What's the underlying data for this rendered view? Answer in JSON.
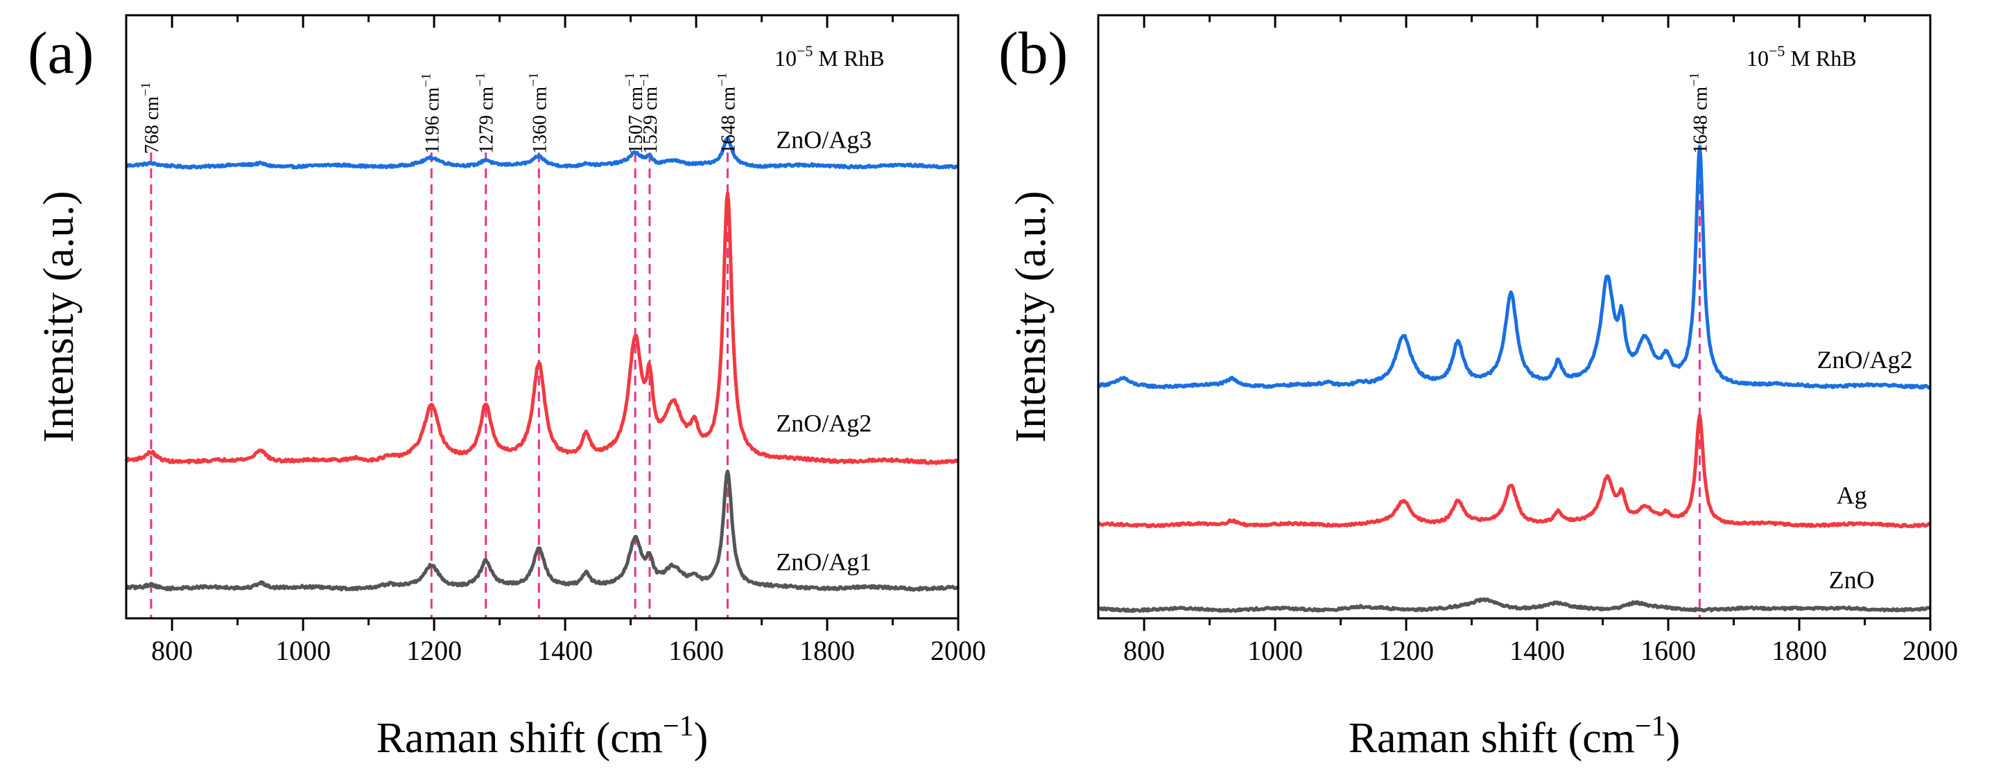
{
  "colors": {
    "blue": "#1a6fe0",
    "red": "#f03a40",
    "gray": "#555555",
    "peak": "#e8338a"
  },
  "chart_data": [
    {
      "type": "line",
      "panel": "(a)",
      "note_prefix": "10",
      "note_exponent": "−5",
      "note_suffix": " M RhB",
      "xlabel": "Raman shift (cm",
      "xlabel_exp": "−1",
      "xlabel_close": ")",
      "ylabel": "Intensity (a.u.)",
      "xlim": [
        730,
        2000
      ],
      "ylim": [
        0,
        100
      ],
      "xticks": [
        800,
        1000,
        1200,
        1400,
        1600,
        1800,
        2000
      ],
      "tick_labels": [
        "800",
        "1000",
        "1200",
        "1400",
        "1600",
        "1800",
        "2000"
      ],
      "peak_lines": [
        768,
        1196,
        1279,
        1360,
        1507,
        1529,
        1648
      ],
      "peak_labels": [
        "768 cm",
        "1196 cm",
        "1279 cm",
        "1360 cm",
        "1507 cm",
        "1529 cm",
        "1648 cm"
      ],
      "peak_label_exp": "−1",
      "series": [
        {
          "name": "ZnO/Ag3",
          "color": "#1a6fe0",
          "baseline": 75,
          "noise": 0.18,
          "label_x": 1795,
          "label_y": 78,
          "peaks": [
            [
              768,
              0.3,
              10
            ],
            [
              935,
              0.4,
              10
            ],
            [
              1196,
              1.2,
              15
            ],
            [
              1279,
              1.1,
              10
            ],
            [
              1360,
              1.5,
              10
            ],
            [
              1432,
              0.5,
              7
            ],
            [
              1507,
              2.0,
              12
            ],
            [
              1529,
              1.2,
              6
            ],
            [
              1565,
              1.0,
              15
            ],
            [
              1648,
              4.5,
              8
            ]
          ]
        },
        {
          "name": "ZnO/Ag2",
          "color": "#f03a40",
          "baseline": 26,
          "noise": 0.22,
          "label_x": 1795,
          "label_y": 31,
          "peaks": [
            [
              768,
              1.5,
              10
            ],
            [
              935,
              2.0,
              10
            ],
            [
              1080,
              0.5,
              10
            ],
            [
              1130,
              0.5,
              10
            ],
            [
              1196,
              9.0,
              14
            ],
            [
              1279,
              9.0,
              10
            ],
            [
              1360,
              16.0,
              11
            ],
            [
              1432,
              3.8,
              7
            ],
            [
              1507,
              19.5,
              12
            ],
            [
              1529,
              10.0,
              6
            ],
            [
              1565,
              8.5,
              16
            ],
            [
              1597,
              4.0,
              8
            ],
            [
              1648,
              44.0,
              8
            ]
          ]
        },
        {
          "name": "ZnO/Ag1",
          "color": "#555555",
          "baseline": 5,
          "noise": 0.22,
          "label_x": 1795,
          "label_y": 8,
          "peaks": [
            [
              768,
              0.7,
              10
            ],
            [
              935,
              1.0,
              10
            ],
            [
              1130,
              0.4,
              10
            ],
            [
              1196,
              3.8,
              14
            ],
            [
              1279,
              4.2,
              10
            ],
            [
              1360,
              6.5,
              11
            ],
            [
              1432,
              2.0,
              7
            ],
            [
              1507,
              8.0,
              12
            ],
            [
              1529,
              3.5,
              6
            ],
            [
              1565,
              3.0,
              16
            ],
            [
              1597,
              1.0,
              8
            ],
            [
              1648,
              19.5,
              8
            ]
          ]
        }
      ]
    },
    {
      "type": "line",
      "panel": "(b)",
      "note_prefix": "10",
      "note_exponent": "−5",
      "note_suffix": " M RhB",
      "xlabel": "Raman shift (cm",
      "xlabel_exp": "−1",
      "xlabel_close": ")",
      "ylabel": "Intensity (a.u.)",
      "xlim": [
        730,
        2000
      ],
      "ylim": [
        0,
        100
      ],
      "xticks": [
        800,
        1000,
        1200,
        1400,
        1600,
        1800,
        2000
      ],
      "tick_labels": [
        "800",
        "1000",
        "1200",
        "1400",
        "1600",
        "1800",
        "2000"
      ],
      "peak_lines": [
        1648
      ],
      "peak_labels": [
        "1648 cm"
      ],
      "peak_label_exp": "−1",
      "series": [
        {
          "name": "ZnO/Ag2",
          "color": "#1a6fe0",
          "baseline": 38.5,
          "noise": 0.2,
          "label_x": 1900,
          "label_y": 41.5,
          "peaks": [
            [
              768,
              1.2,
              10
            ],
            [
              935,
              1.2,
              10
            ],
            [
              1080,
              0.4,
              10
            ],
            [
              1130,
              0.5,
              10
            ],
            [
              1196,
              8.0,
              14
            ],
            [
              1279,
              7.0,
              10
            ],
            [
              1360,
              15.0,
              11
            ],
            [
              1432,
              3.5,
              7
            ],
            [
              1507,
              17.0,
              12
            ],
            [
              1529,
              8.0,
              6
            ],
            [
              1565,
              7.0,
              15
            ],
            [
              1597,
              3.5,
              8
            ],
            [
              1648,
              39.0,
              7
            ]
          ]
        },
        {
          "name": "Ag",
          "color": "#f03a40",
          "baseline": 15.5,
          "noise": 0.18,
          "label_x": 1880,
          "label_y": 19,
          "peaks": [
            [
              935,
              0.8,
              10
            ],
            [
              1196,
              3.8,
              14
            ],
            [
              1279,
              3.8,
              10
            ],
            [
              1360,
              6.5,
              11
            ],
            [
              1432,
              1.8,
              7
            ],
            [
              1507,
              7.5,
              12
            ],
            [
              1529,
              4.0,
              6
            ],
            [
              1565,
              2.5,
              15
            ],
            [
              1597,
              1.2,
              8
            ],
            [
              1648,
              18.0,
              7
            ]
          ]
        },
        {
          "name": "ZnO",
          "color": "#555555",
          "baseline": 1.5,
          "noise": 0.18,
          "label_x": 1880,
          "label_y": 5,
          "peaks": [
            [
              1130,
              0.3,
              20
            ],
            [
              1320,
              1.5,
              25
            ],
            [
              1430,
              0.8,
              20
            ],
            [
              1550,
              1.0,
              20
            ],
            [
              1800,
              0.3,
              30
            ]
          ]
        }
      ]
    }
  ]
}
